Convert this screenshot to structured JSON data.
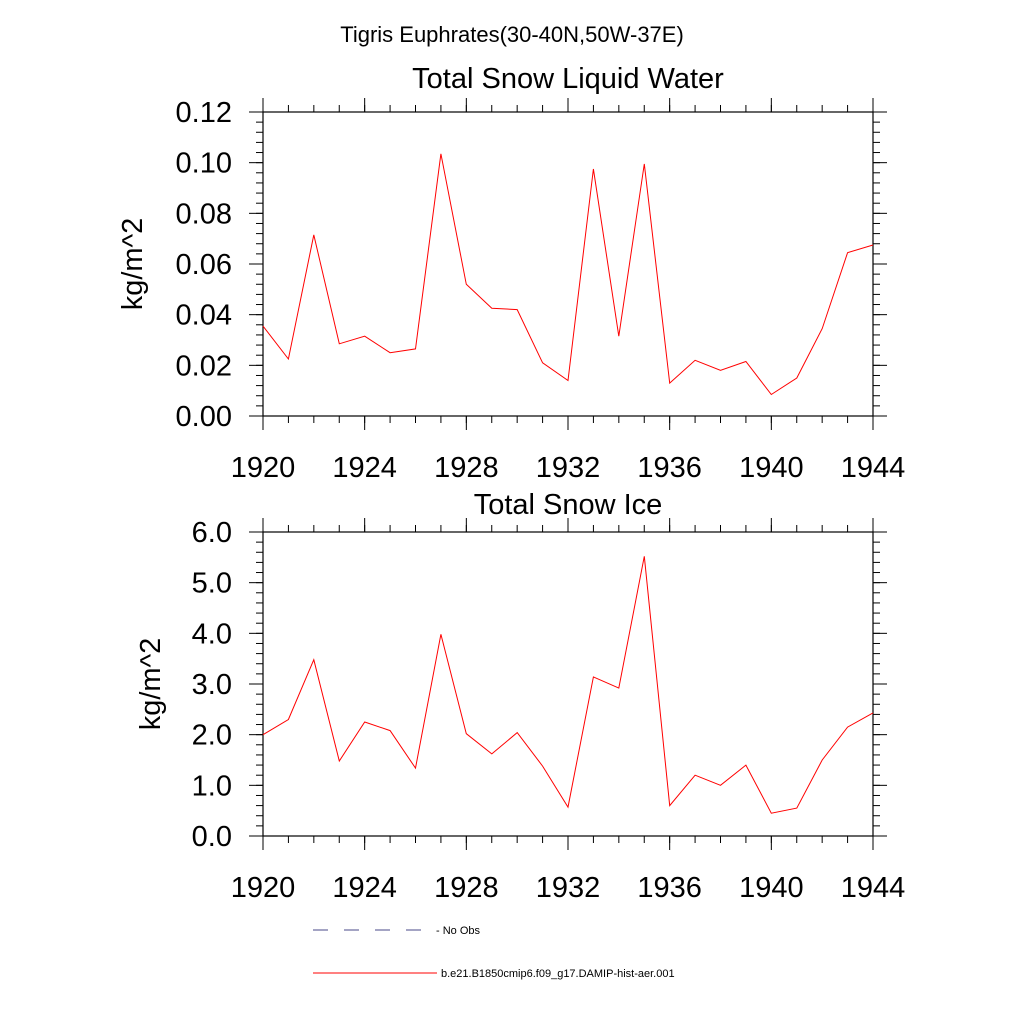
{
  "figure": {
    "suptitle": "Tigris Euphrates(30-40N,50W-37E)"
  },
  "chart_data": [
    {
      "type": "line",
      "title": "Total Snow Liquid Water",
      "xlabel": "",
      "ylabel": "kg/m^2",
      "xlim": [
        1920,
        1944
      ],
      "ylim": [
        0.0,
        0.12
      ],
      "x_ticks": [
        1920,
        1924,
        1928,
        1932,
        1936,
        1940,
        1944
      ],
      "x_tick_labels": [
        "1920",
        "1924",
        "1928",
        "1932",
        "1936",
        "1940",
        "1944"
      ],
      "y_ticks": [
        0.0,
        0.02,
        0.04,
        0.06,
        0.08,
        0.1,
        0.12
      ],
      "y_tick_labels": [
        "0.00",
        "0.02",
        "0.04",
        "0.06",
        "0.08",
        "0.10",
        "0.12"
      ],
      "grid": false,
      "x": [
        1920,
        1921,
        1922,
        1923,
        1924,
        1925,
        1926,
        1927,
        1928,
        1929,
        1930,
        1931,
        1932,
        1933,
        1934,
        1935,
        1936,
        1937,
        1938,
        1939,
        1940,
        1941,
        1942,
        1943,
        1944
      ],
      "series": [
        {
          "name": "b.e21.B1850cmip6.f09_g17.DAMIP-hist-aer.001",
          "color": "#ff0000",
          "values": [
            0.0355,
            0.0225,
            0.0715,
            0.0285,
            0.0315,
            0.025,
            0.0265,
            0.1035,
            0.052,
            0.0425,
            0.042,
            0.021,
            0.014,
            0.0975,
            0.0315,
            0.0995,
            0.013,
            0.022,
            0.018,
            0.0215,
            0.0085,
            0.015,
            0.0345,
            0.0645,
            0.0675
          ]
        }
      ]
    },
    {
      "type": "line",
      "title": "Total Snow Ice",
      "xlabel": "",
      "ylabel": "kg/m^2",
      "xlim": [
        1920,
        1944
      ],
      "ylim": [
        0.0,
        6.0
      ],
      "x_ticks": [
        1920,
        1924,
        1928,
        1932,
        1936,
        1940,
        1944
      ],
      "x_tick_labels": [
        "1920",
        "1924",
        "1928",
        "1932",
        "1936",
        "1940",
        "1944"
      ],
      "y_ticks": [
        0.0,
        1.0,
        2.0,
        3.0,
        4.0,
        5.0,
        6.0
      ],
      "y_tick_labels": [
        "0.0",
        "1.0",
        "2.0",
        "3.0",
        "4.0",
        "5.0",
        "6.0"
      ],
      "grid": false,
      "x": [
        1920,
        1921,
        1922,
        1923,
        1924,
        1925,
        1926,
        1927,
        1928,
        1929,
        1930,
        1931,
        1932,
        1933,
        1934,
        1935,
        1936,
        1937,
        1938,
        1939,
        1940,
        1941,
        1942,
        1943,
        1944
      ],
      "series": [
        {
          "name": "b.e21.B1850cmip6.f09_g17.DAMIP-hist-aer.001",
          "color": "#ff0000",
          "values": [
            2.0,
            2.3,
            3.48,
            1.48,
            2.25,
            2.08,
            1.34,
            3.98,
            2.02,
            1.62,
            2.04,
            1.38,
            0.57,
            3.14,
            2.92,
            5.52,
            0.6,
            1.2,
            1.0,
            1.4,
            0.45,
            0.55,
            1.5,
            2.15,
            2.43
          ]
        }
      ]
    }
  ],
  "legend": {
    "placement": "bottom",
    "items": [
      {
        "label": "- No Obs",
        "style": "dashed",
        "color": "#4a4a8a"
      },
      {
        "label": "b.e21.B1850cmip6.f09_g17.DAMIP-hist-aer.001",
        "style": "solid",
        "color": "#ff0000"
      }
    ]
  }
}
